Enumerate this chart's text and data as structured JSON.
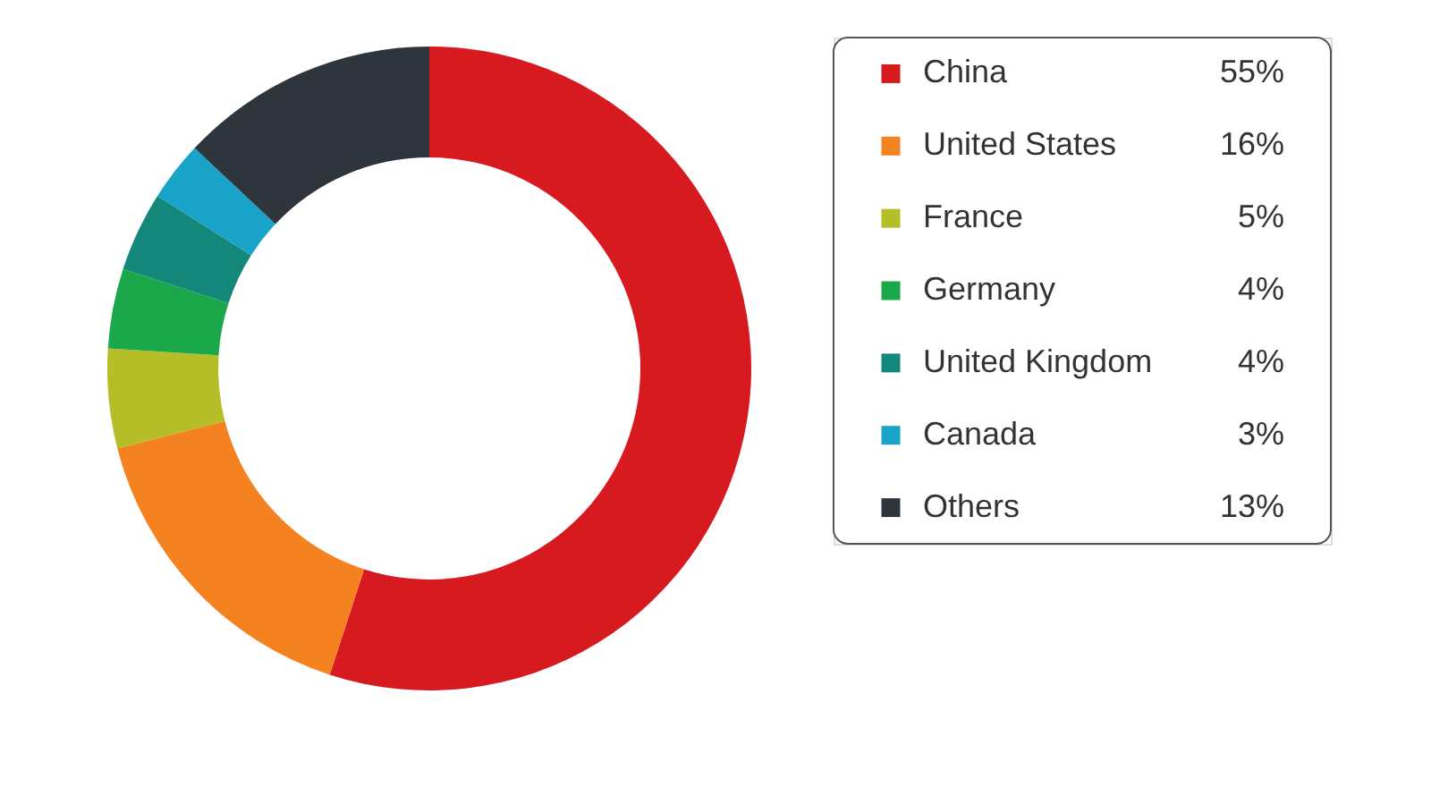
{
  "chart_data": {
    "type": "donut",
    "categories": [
      "China",
      "United States",
      "France",
      "Germany",
      "United Kingdom",
      "Canada",
      "Others"
    ],
    "values": [
      55,
      16,
      5,
      4,
      4,
      3,
      13
    ],
    "colors": [
      "#d71920",
      "#f58220",
      "#b5bd27",
      "#1aa84a",
      "#13877a",
      "#1aa3c9",
      "#2e353d"
    ],
    "value_labels": [
      "55%",
      "16%",
      "5%",
      "4%",
      "4%",
      "3%",
      "13%"
    ],
    "legend": "right"
  }
}
